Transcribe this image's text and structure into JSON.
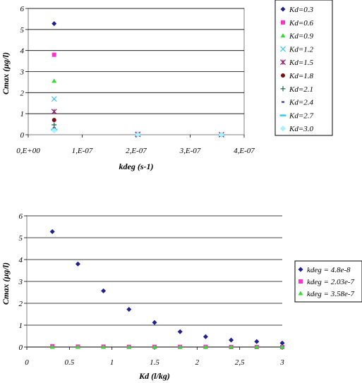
{
  "chart_data": [
    {
      "type": "scatter",
      "xlabel": "kdeg (s-1)",
      "ylabel": "Cmax (µg/l)",
      "xlim": [
        0,
        4e-07
      ],
      "ylim": [
        0,
        6
      ],
      "x_tick_labels": [
        "0,E+00",
        "1,E-07",
        "2,E-07",
        "3,E-07",
        "4,E-07"
      ],
      "y_tick_labels": [
        "0",
        "1",
        "2",
        "3",
        "4",
        "5",
        "6"
      ],
      "grid": "horizontal",
      "legend_position": "right",
      "series": [
        {
          "name": "Kd=0.3",
          "marker": "diamond",
          "color": "#1f1f8f",
          "x": [
            4.8e-08,
            2.03e-07,
            3.58e-07
          ],
          "y": [
            5.28,
            0.03,
            0.0
          ]
        },
        {
          "name": "Kd=0.6",
          "marker": "square",
          "color": "#ff33cc",
          "x": [
            4.8e-08,
            2.03e-07,
            3.58e-07
          ],
          "y": [
            3.8,
            0.02,
            0.0
          ]
        },
        {
          "name": "Kd=0.9",
          "marker": "triangle",
          "color": "#33dd33",
          "x": [
            4.8e-08,
            2.03e-07,
            3.58e-07
          ],
          "y": [
            2.55,
            0.02,
            0.0
          ]
        },
        {
          "name": "Kd=1.2",
          "marker": "x",
          "color": "#33ccff",
          "x": [
            4.8e-08,
            2.03e-07,
            3.58e-07
          ],
          "y": [
            1.7,
            0.02,
            0.0
          ]
        },
        {
          "name": "Kd=1.5",
          "marker": "star",
          "color": "#8b1a6b",
          "x": [
            4.8e-08,
            2.03e-07,
            3.58e-07
          ],
          "y": [
            1.1,
            0.02,
            0.0
          ]
        },
        {
          "name": "Kd=1.8",
          "marker": "circle",
          "color": "#7a1010",
          "x": [
            4.8e-08,
            2.03e-07,
            3.58e-07
          ],
          "y": [
            0.7,
            0.02,
            0.0
          ]
        },
        {
          "name": "Kd=2.1",
          "marker": "plus",
          "color": "#1a5c4a",
          "x": [
            4.8e-08,
            2.03e-07,
            3.58e-07
          ],
          "y": [
            0.47,
            0.01,
            0.0
          ]
        },
        {
          "name": "Kd=2.4",
          "marker": "dash",
          "color": "#1f1f8f",
          "x": [
            4.8e-08,
            2.03e-07,
            3.58e-07
          ],
          "y": [
            0.32,
            0.01,
            0.0
          ]
        },
        {
          "name": "Kd=2.7",
          "marker": "hline",
          "color": "#33ccff",
          "x": [
            4.8e-08,
            2.03e-07,
            3.58e-07
          ],
          "y": [
            0.25,
            0.01,
            0.0
          ]
        },
        {
          "name": "Kd=3.0",
          "marker": "diamond-open",
          "color": "#aaf0ff",
          "x": [
            4.8e-08,
            2.03e-07,
            3.58e-07
          ],
          "y": [
            0.2,
            0.01,
            0.0
          ]
        }
      ]
    },
    {
      "type": "scatter",
      "xlabel": "Kd (l/kg)",
      "ylabel": "Cmax (µg/l)",
      "xlim": [
        0,
        3
      ],
      "ylim": [
        0,
        6
      ],
      "x_tick_labels": [
        "0",
        "0.5",
        "1",
        "1.5",
        "2",
        "2,5",
        "3"
      ],
      "y_tick_labels": [
        "0",
        "1",
        "2",
        "3",
        "4",
        "5",
        "6"
      ],
      "grid": "horizontal",
      "legend_position": "right",
      "series": [
        {
          "name": "kdeg = 4.8e-8",
          "marker": "diamond",
          "color": "#1f1f8f",
          "x": [
            0.3,
            0.6,
            0.9,
            1.2,
            1.5,
            1.8,
            2.1,
            2.4,
            2.7,
            3.0
          ],
          "y": [
            5.28,
            3.8,
            2.57,
            1.72,
            1.12,
            0.7,
            0.47,
            0.32,
            0.25,
            0.18
          ]
        },
        {
          "name": "kdeg = 2.03e-7",
          "marker": "square",
          "color": "#ff33cc",
          "x": [
            0.3,
            0.6,
            0.9,
            1.2,
            1.5,
            1.8,
            2.1,
            2.4,
            2.7,
            3.0
          ],
          "y": [
            0.04,
            0.02,
            0.02,
            0.01,
            0.01,
            0.01,
            0.01,
            0.0,
            0.0,
            0.0
          ]
        },
        {
          "name": "kdeg = 3.58e-7",
          "marker": "triangle",
          "color": "#33dd33",
          "x": [
            0.3,
            0.6,
            0.9,
            1.2,
            1.5,
            1.8,
            2.1,
            2.4,
            2.7,
            3.0
          ],
          "y": [
            0.0,
            0.0,
            0.0,
            0.0,
            0.0,
            0.0,
            0.0,
            0.0,
            0.0,
            0.0
          ]
        }
      ]
    }
  ]
}
